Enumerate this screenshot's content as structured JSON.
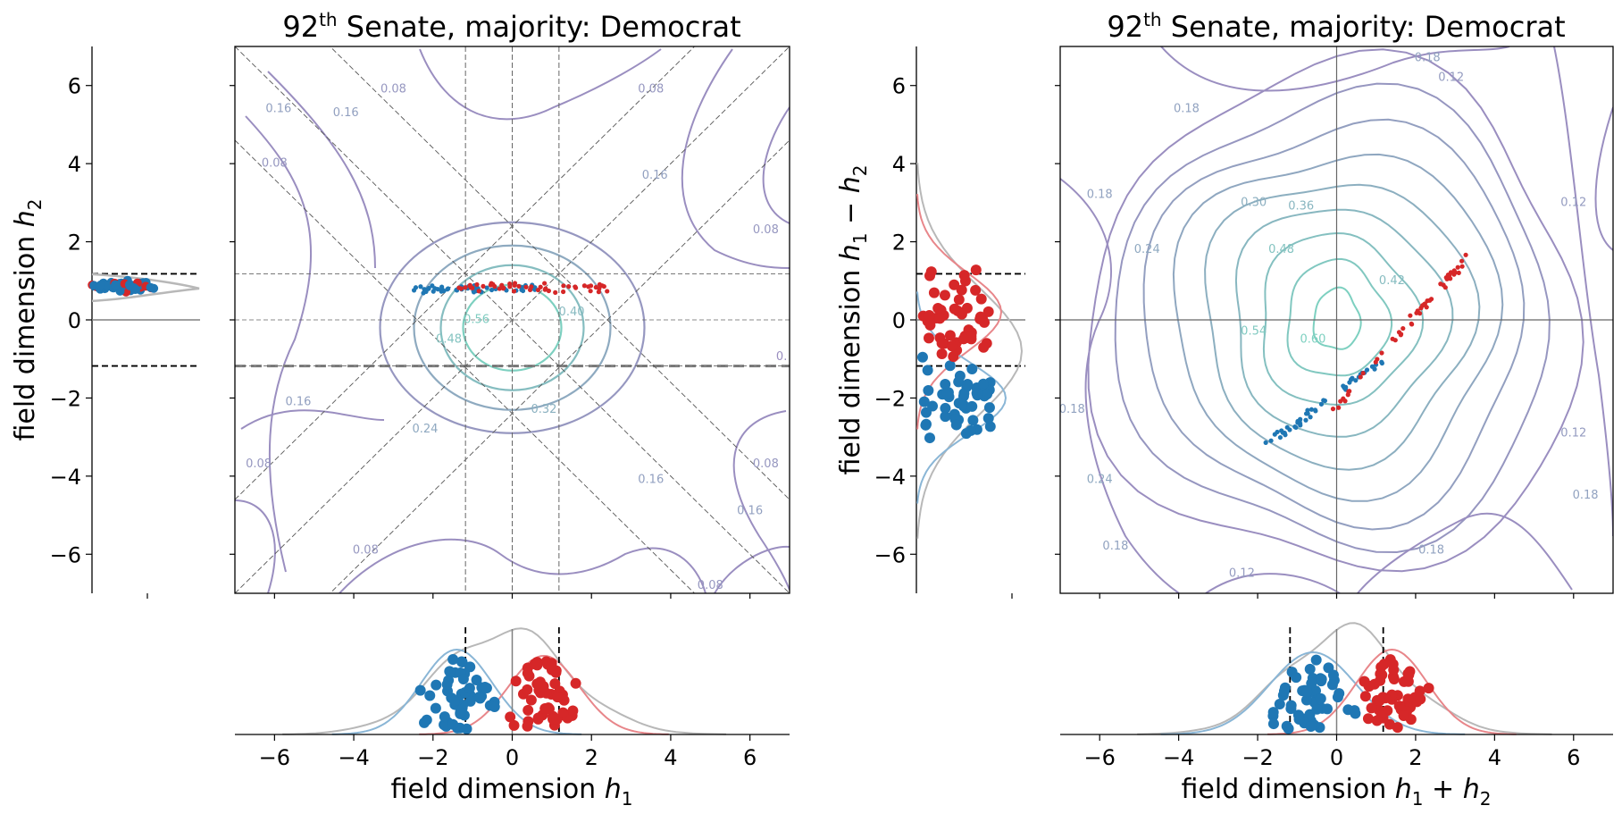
{
  "figure": {
    "left_title_pre": "92",
    "left_title_sup": "th",
    "left_title_post": " Senate, majority: Democrat",
    "right_title_pre": "92",
    "right_title_sup": "th",
    "right_title_post": " Senate, majority: Democrat",
    "ylabel_left_prefix": "field dimension ",
    "ylabel_left_var": "h",
    "ylabel_left_sub": "2",
    "ylabel_right_prefix": "field dimension ",
    "ylabel_right_var1": "h",
    "ylabel_right_sub1": "1",
    "ylabel_right_op": " − ",
    "ylabel_right_var2": "h",
    "ylabel_right_sub2": "2",
    "xlabel_left_prefix": "field dimension ",
    "xlabel_left_var": "h",
    "xlabel_left_sub": "1",
    "xlabel_right_prefix": "field dimension ",
    "xlabel_right_var1": "h",
    "xlabel_right_sub1": "1",
    "xlabel_right_op": " + ",
    "xlabel_right_var2": "h",
    "xlabel_right_sub2": "2"
  },
  "colors": {
    "democrat": "#1f77b4",
    "republican": "#d62728",
    "total_kde": "#b8b8b8",
    "democrat_kde": "#8ab6d6",
    "republican_kde": "#e8868a",
    "contour_low": "#9a8ec0",
    "contour_high": "#7dd0c0",
    "axis_line": "#808080"
  },
  "chart_data": [
    {
      "type": "contour",
      "title": "92th Senate, majority: Democrat",
      "xlabel": "field dimension h1",
      "ylabel": "field dimension h2",
      "xlim": [
        -7,
        7
      ],
      "ylim": [
        -7,
        7
      ],
      "xticks": [
        "−6",
        "−4",
        "−2",
        "0",
        "2",
        "4",
        "6"
      ],
      "yticks": [
        "6",
        "4",
        "2",
        "0",
        "−2",
        "−4",
        "−6"
      ],
      "contour_labels": [
        {
          "text": "0.08",
          "x": -3.0,
          "y": 5.9
        },
        {
          "text": "0.16",
          "x": -5.9,
          "y": 5.4
        },
        {
          "text": "0.16",
          "x": -4.2,
          "y": 5.3
        },
        {
          "text": "0.08",
          "x": -6.0,
          "y": 4.0
        },
        {
          "text": "0.08",
          "x": 3.5,
          "y": 5.9
        },
        {
          "text": "0.16",
          "x": 3.6,
          "y": 3.7
        },
        {
          "text": "0.08",
          "x": 6.4,
          "y": 2.3
        },
        {
          "text": "0.48",
          "x": -1.6,
          "y": -0.5
        },
        {
          "text": "0.56",
          "x": -0.9,
          "y": 0.0
        },
        {
          "text": "0.40",
          "x": 1.5,
          "y": 0.2
        },
        {
          "text": "0.32",
          "x": 0.8,
          "y": -2.3
        },
        {
          "text": "0.24",
          "x": -2.2,
          "y": -2.8
        },
        {
          "text": "0.16",
          "x": -5.4,
          "y": -2.1
        },
        {
          "text": "0.16",
          "x": 3.5,
          "y": -4.1
        },
        {
          "text": "0.08",
          "x": -6.4,
          "y": -3.7
        },
        {
          "text": "0.08",
          "x": 6.4,
          "y": -3.7
        },
        {
          "text": "0.16",
          "x": 6.0,
          "y": -4.9
        },
        {
          "text": "0.08",
          "x": -3.7,
          "y": -5.9
        },
        {
          "text": "0.08",
          "x": 5.0,
          "y": -6.8
        },
        {
          "text": "0.",
          "x": 6.8,
          "y": -0.95
        }
      ],
      "reference_lines": {
        "h1": [
          -1.18,
          0,
          1.18
        ],
        "h2": [
          -1.18,
          0,
          1.18
        ]
      },
      "democrat_points": {
        "h1_range": [
          -2.5,
          0.6
        ],
        "h2_approx": 0.8,
        "count": 50
      },
      "republican_points": {
        "h1_range": [
          -1.4,
          2.4
        ],
        "h2_approx": 0.85,
        "count": 50
      }
    },
    {
      "type": "contour",
      "title": "92th Senate, majority: Democrat",
      "xlabel": "field dimension h1 + h2",
      "ylabel": "field dimension h1 − h2",
      "xlim": [
        -7,
        7
      ],
      "ylim": [
        -7,
        7
      ],
      "xticks": [
        "−6",
        "−4",
        "−2",
        "0",
        "2",
        "4",
        "6"
      ],
      "yticks": [
        "6",
        "4",
        "2",
        "0",
        "−2",
        "−4",
        "−6"
      ],
      "contour_labels": [
        {
          "text": "0.12",
          "x": 2.9,
          "y": 6.2
        },
        {
          "text": "0.18",
          "x": 2.3,
          "y": 6.7
        },
        {
          "text": "0.18",
          "x": -3.8,
          "y": 5.4
        },
        {
          "text": "0.18",
          "x": -6.0,
          "y": 3.2
        },
        {
          "text": "0.30",
          "x": -2.1,
          "y": 3.0
        },
        {
          "text": "0.36",
          "x": -0.9,
          "y": 2.9
        },
        {
          "text": "0.24",
          "x": -4.8,
          "y": 1.8
        },
        {
          "text": "0.48",
          "x": -1.4,
          "y": 1.8
        },
        {
          "text": "0.42",
          "x": 1.4,
          "y": 1.0
        },
        {
          "text": "0.54",
          "x": -2.1,
          "y": -0.3
        },
        {
          "text": "0.60",
          "x": -0.6,
          "y": -0.5
        },
        {
          "text": "0.18",
          "x": -6.7,
          "y": -2.3
        },
        {
          "text": "0.24",
          "x": -6.0,
          "y": -4.1
        },
        {
          "text": "0.18",
          "x": -5.6,
          "y": -5.8
        },
        {
          "text": "0.12",
          "x": -2.4,
          "y": -6.5
        },
        {
          "text": "0.18",
          "x": 2.4,
          "y": -5.9
        },
        {
          "text": "0.12",
          "x": 6.0,
          "y": 3.0
        },
        {
          "text": "0.12",
          "x": 6.0,
          "y": -2.9
        },
        {
          "text": "0.18",
          "x": 6.3,
          "y": -4.5
        }
      ],
      "reference_lines": {
        "sum": [
          0
        ],
        "diff": [
          0
        ]
      },
      "democrat_points": {
        "sum_range": [
          -1.8,
          1.2
        ],
        "diff_range": [
          -3.2,
          -1.0
        ],
        "count": 50
      },
      "republican_points": {
        "sum_range": [
          -0.2,
          3.3
        ],
        "diff_range": [
          -2.4,
          1.6
        ],
        "count": 50
      }
    }
  ]
}
